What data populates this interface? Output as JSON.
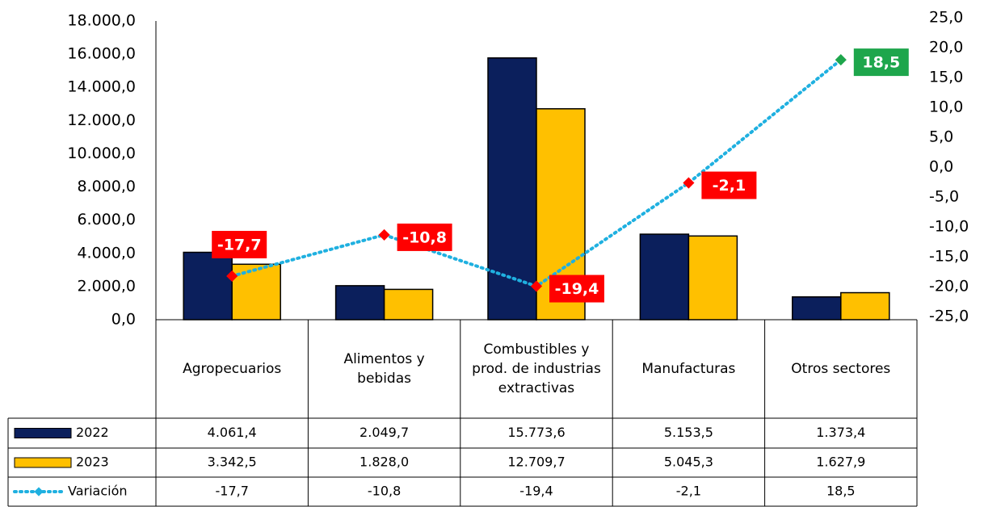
{
  "chart_data": {
    "type": "bar_line_table",
    "categories": [
      "Agropecuarios",
      "Alimentos y bebidas",
      "Combustibles y prod. de industrias extractivas",
      "Manufacturas",
      "Otros sectores"
    ],
    "series": [
      {
        "name": "2022",
        "color": "#0b1f5c",
        "values": [
          4061.4,
          2049.7,
          15773.6,
          5153.5,
          1373.4
        ],
        "value_labels": [
          "4.061,4",
          "2.049,7",
          "15.773,6",
          "5.153,5",
          "1.373,4"
        ]
      },
      {
        "name": "2023",
        "color": "#ffc000",
        "values": [
          3342.5,
          1828.0,
          12709.7,
          5045.3,
          1627.9
        ],
        "value_labels": [
          "3.342,5",
          "1.828,0",
          "12.709,7",
          "5.045,3",
          "1.627,9"
        ]
      },
      {
        "name": "Variación",
        "color": "#1fb0e0",
        "axis": "y2",
        "values": [
          -17.7,
          -10.8,
          -19.4,
          -2.1,
          18.5
        ],
        "value_labels": [
          "-17,7",
          "-10,8",
          "-19,4",
          "-2,1",
          "18,5"
        ],
        "negative_color": "#ff0000",
        "positive_color": "#1ea64c"
      }
    ],
    "ylim": [
      0,
      18000
    ],
    "yticks": [
      {
        "value": 0,
        "label": "0,0"
      },
      {
        "value": 2000,
        "label": "2.000,0"
      },
      {
        "value": 4000,
        "label": "4.000,0"
      },
      {
        "value": 6000,
        "label": "6.000,0"
      },
      {
        "value": 8000,
        "label": "8.000,0"
      },
      {
        "value": 10000,
        "label": "10.000,0"
      },
      {
        "value": 12000,
        "label": "12.000,0"
      },
      {
        "value": 14000,
        "label": "14.000,0"
      },
      {
        "value": 16000,
        "label": "16.000,0"
      },
      {
        "value": 18000,
        "label": "18.000,0"
      }
    ],
    "y2lim": [
      -25,
      25
    ],
    "y2ticks": [
      {
        "value": -25,
        "label": "-25,0"
      },
      {
        "value": -20,
        "label": "-20,0"
      },
      {
        "value": -15,
        "label": "-15,0"
      },
      {
        "value": -10,
        "label": "-10,0"
      },
      {
        "value": -5,
        "label": "-5,0"
      },
      {
        "value": 0,
        "label": "0,0"
      },
      {
        "value": 5,
        "label": "5,0"
      },
      {
        "value": 10,
        "label": "10,0"
      },
      {
        "value": 15,
        "label": "15,0"
      },
      {
        "value": 20,
        "label": "20,0"
      },
      {
        "value": 25,
        "label": "25,0"
      }
    ]
  }
}
